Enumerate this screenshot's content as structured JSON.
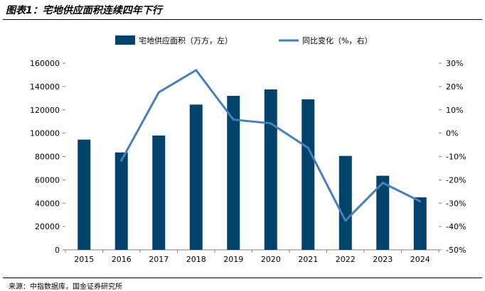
{
  "header": {
    "title": "图表1：宅地供应面积连续四年下行"
  },
  "footer": {
    "source": "来源：中指数据库，国金证券研究所"
  },
  "chart_data": {
    "type": "bar",
    "categories": [
      "2015",
      "2016",
      "2017",
      "2018",
      "2019",
      "2020",
      "2021",
      "2022",
      "2023",
      "2024"
    ],
    "series": [
      {
        "name": "宅地供应面积（万方，左）",
        "type": "bar",
        "axis": "left",
        "color": "#00446b",
        "values": [
          94500,
          83500,
          98000,
          124500,
          132000,
          137500,
          129000,
          80500,
          63500,
          45000
        ]
      },
      {
        "name": "同比变化（%，右）",
        "type": "line",
        "axis": "right",
        "color": "#4a7ebb",
        "values": [
          null,
          -11.7,
          17.5,
          27.0,
          5.8,
          4.2,
          -6.3,
          -37.5,
          -21.3,
          -29.2
        ]
      }
    ],
    "y_left": {
      "min": 0,
      "max": 160000,
      "ticks": [
        0,
        20000,
        40000,
        60000,
        80000,
        100000,
        120000,
        140000,
        160000
      ],
      "tick_labels": [
        "0",
        "20000",
        "40000",
        "60000",
        "80000",
        "100000",
        "120000",
        "140000",
        "160000"
      ]
    },
    "y_right": {
      "min": -50,
      "max": 30,
      "ticks": [
        -50,
        -40,
        -30,
        -20,
        -10,
        0,
        10,
        20,
        30
      ],
      "tick_labels": [
        "-50%",
        "-40%",
        "-30%",
        "-20%",
        "-10%",
        "0%",
        "10%",
        "20%",
        "30%"
      ]
    },
    "grid": false,
    "legend_position": "top"
  }
}
